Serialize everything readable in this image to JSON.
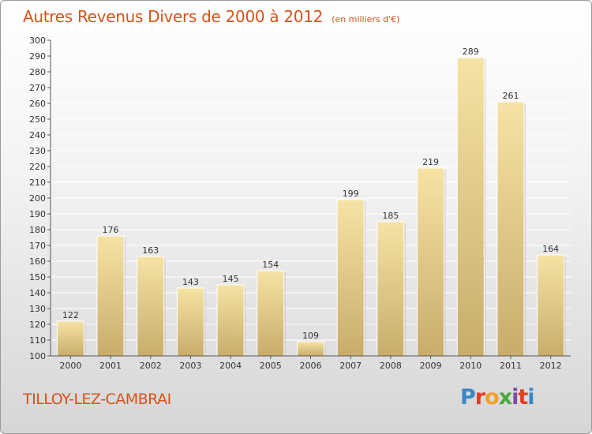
{
  "header": {
    "title": "Autres Revenus Divers de 2000 à 2012",
    "subtitle": "(en milliers d'€)"
  },
  "footer": {
    "city": "TILLOY-LEZ-CAMBRAI",
    "logo_text": "Proxiti",
    "logo_colors": [
      "#3a86c8",
      "#e0401e",
      "#f2a12a",
      "#48a83c",
      "#7a4ea0",
      "#e0401e",
      "#3a86c8"
    ]
  },
  "colors": {
    "bar_top": "#f6e3a4",
    "bar_bottom": "#c8ad6a",
    "grid": "#ffffff",
    "axis": "#555555",
    "text": "#333333",
    "accent": "#d8521a"
  },
  "chart_data": {
    "type": "bar",
    "title": "Autres Revenus Divers de 2000 à 2012",
    "subtitle": "(en milliers d'€)",
    "categories": [
      "2000",
      "2001",
      "2002",
      "2003",
      "2004",
      "2005",
      "2006",
      "2007",
      "2008",
      "2009",
      "2010",
      "2011",
      "2012"
    ],
    "values": [
      122,
      176,
      163,
      143,
      145,
      154,
      109,
      199,
      185,
      219,
      289,
      261,
      164
    ],
    "ylim": [
      100,
      300
    ],
    "ytick_step": 10,
    "grid": true,
    "legend": "none"
  }
}
